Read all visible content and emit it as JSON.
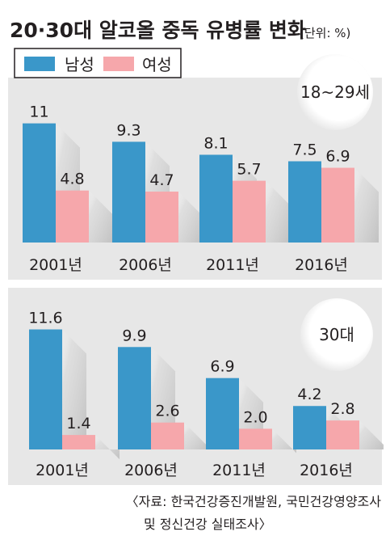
{
  "header": {
    "title": "20·30대 알코올 중독 유병률 변화",
    "unit": "(단위: %)"
  },
  "legend": [
    {
      "label": "남성",
      "color": "#3a97c9"
    },
    {
      "label": "여성",
      "color": "#f6a7ab"
    }
  ],
  "colors": {
    "male": "#3a97c9",
    "female": "#f6a7ab",
    "shadow": "#dedede",
    "panel_bg": "#e7e7e7"
  },
  "chart_data": [
    {
      "type": "bar",
      "group_label": "18~29세",
      "categories": [
        "2001년",
        "2006년",
        "2011년",
        "2016년"
      ],
      "series": [
        {
          "name": "남성",
          "values": [
            11,
            9.3,
            8.1,
            7.5
          ],
          "labels": [
            "11",
            "9.3",
            "8.1",
            "7.5"
          ]
        },
        {
          "name": "여성",
          "values": [
            4.8,
            4.7,
            5.7,
            6.9
          ],
          "labels": [
            "4.8",
            "4.7",
            "5.7",
            "6.9"
          ]
        }
      ]
    },
    {
      "type": "bar",
      "group_label": "30대",
      "categories": [
        "2001년",
        "2006년",
        "2011년",
        "2016년"
      ],
      "series": [
        {
          "name": "남성",
          "values": [
            11.6,
            9.9,
            6.9,
            4.2
          ],
          "labels": [
            "11.6",
            "9.9",
            "6.9",
            "4.2"
          ]
        },
        {
          "name": "여성",
          "values": [
            1.4,
            2.6,
            2.0,
            2.8
          ],
          "labels": [
            "1.4",
            "2.6",
            "2.0",
            "2.8"
          ]
        }
      ]
    }
  ],
  "footer": {
    "source_line1": "〈자료: 한국건강증진개발원, 국민건강영양조사",
    "source_line2": "및 정신건강 실태조사〉"
  }
}
